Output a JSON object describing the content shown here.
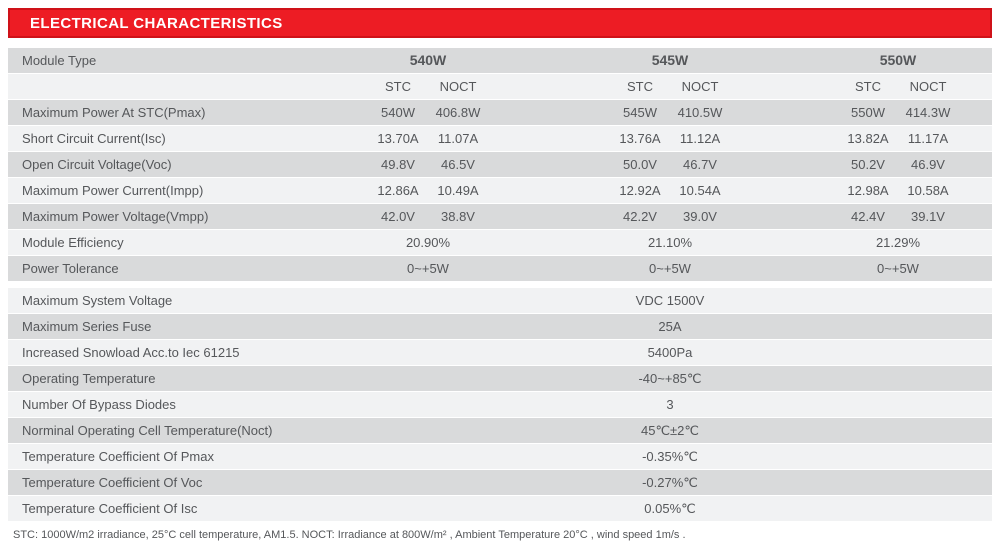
{
  "header": {
    "title": "ELECTRICAL CHARACTERISTICS"
  },
  "colors": {
    "accent_red": "#ed1c24",
    "row_gray": "#d9dadb",
    "row_light": "#f1f2f3",
    "text_gray": "#55575a"
  },
  "table": {
    "module_type_label": "Module Type",
    "module_columns": [
      "540W",
      "545W",
      "550W"
    ],
    "condition_headers": [
      "STC",
      "NOCT"
    ],
    "spec_rows": [
      {
        "label": "Maximum Power At STC(Pmax)",
        "values": [
          [
            "540W",
            "406.8W"
          ],
          [
            "545W",
            "410.5W"
          ],
          [
            "550W",
            "414.3W"
          ]
        ]
      },
      {
        "label": "Short Circuit Current(Isc)",
        "values": [
          [
            "13.70A",
            "11.07A"
          ],
          [
            "13.76A",
            "11.12A"
          ],
          [
            "13.82A",
            "11.17A"
          ]
        ]
      },
      {
        "label": "Open Circuit Voltage(Voc)",
        "values": [
          [
            "49.8V",
            "46.5V"
          ],
          [
            "50.0V",
            "46.7V"
          ],
          [
            "50.2V",
            "46.9V"
          ]
        ]
      },
      {
        "label": "Maximum Power Current(Impp)",
        "values": [
          [
            "12.86A",
            "10.49A"
          ],
          [
            "12.92A",
            "10.54A"
          ],
          [
            "12.98A",
            "10.58A"
          ]
        ]
      },
      {
        "label": "Maximum Power Voltage(Vmpp)",
        "values": [
          [
            "42.0V",
            "38.8V"
          ],
          [
            "42.2V",
            "39.0V"
          ],
          [
            "42.4V",
            "39.1V"
          ]
        ]
      }
    ],
    "group_rows": [
      {
        "label": "Module Efficiency",
        "values": [
          "20.90%",
          "21.10%",
          "21.29%"
        ]
      },
      {
        "label": "Power Tolerance",
        "values": [
          "0~+5W",
          "0~+5W",
          "0~+5W"
        ]
      }
    ],
    "span_rows": [
      {
        "label": "Maximum System Voltage",
        "value": "VDC 1500V"
      },
      {
        "label": "Maximum Series Fuse",
        "value": "25A"
      },
      {
        "label": "Increased Snowload Acc.to Iec 61215",
        "value": "5400Pa"
      },
      {
        "label": "Operating Temperature",
        "value": "-40~+85℃"
      },
      {
        "label": "Number Of Bypass Diodes",
        "value": "3"
      },
      {
        "label": "Norminal Operating Cell Temperature(Noct)",
        "value": "45℃±2℃"
      },
      {
        "label": "Temperature Coefficient Of Pmax",
        "value": "-0.35%℃"
      },
      {
        "label": "Temperature Coefficient Of Voc",
        "value": "-0.27%℃"
      },
      {
        "label": "Temperature Coefficient Of Isc",
        "value": "0.05%℃"
      }
    ]
  },
  "footer": {
    "note": "STC: 1000W/m2 irradiance, 25°C cell temperature, AM1.5.   NOCT: Irradiance at 800W/m² , Ambient Temperature 20°C  , wind speed 1m/s ."
  }
}
